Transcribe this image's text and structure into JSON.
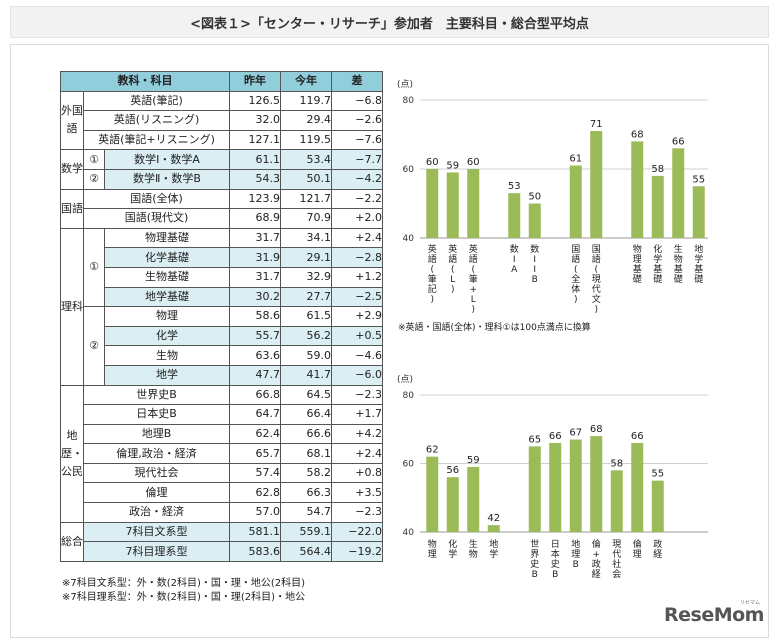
{
  "title": "<図表１>「センター・リサーチ」参加者　主要科目・総合型平均点",
  "table": {
    "headers": [
      "教科・科目",
      "昨年",
      "今年",
      "差"
    ],
    "rows": [
      {
        "group": "外国語",
        "sub": "",
        "subject": "英語(筆記)",
        "last": "126.5",
        "this": "119.7",
        "diff": "−6.8"
      },
      {
        "group": "",
        "sub": "",
        "subject": "英語(リスニング)",
        "last": "32.0",
        "this": "29.4",
        "diff": "−2.6"
      },
      {
        "group": "",
        "sub": "",
        "subject": "英語(筆記+リスニング)",
        "last": "127.1",
        "this": "119.5",
        "diff": "−7.6"
      },
      {
        "group": "数学",
        "sub": "①",
        "subject": "数学Ⅰ・数学A",
        "last": "61.1",
        "this": "53.4",
        "diff": "−7.7"
      },
      {
        "group": "",
        "sub": "②",
        "subject": "数学Ⅱ・数学B",
        "last": "54.3",
        "this": "50.1",
        "diff": "−4.2"
      },
      {
        "group": "国語",
        "sub": "",
        "subject": "国語(全体)",
        "last": "123.9",
        "this": "121.7",
        "diff": "−2.2"
      },
      {
        "group": "",
        "sub": "",
        "subject": "国語(現代文)",
        "last": "68.9",
        "this": "70.9",
        "diff": "+2.0"
      },
      {
        "group": "理科",
        "sub": "①",
        "subject": "物理基礎",
        "last": "31.7",
        "this": "34.1",
        "diff": "+2.4"
      },
      {
        "group": "",
        "sub": "",
        "subject": "化学基礎",
        "last": "31.9",
        "this": "29.1",
        "diff": "−2.8"
      },
      {
        "group": "",
        "sub": "",
        "subject": "生物基礎",
        "last": "31.7",
        "this": "32.9",
        "diff": "+1.2"
      },
      {
        "group": "",
        "sub": "",
        "subject": "地学基礎",
        "last": "30.2",
        "this": "27.7",
        "diff": "−2.5"
      },
      {
        "group": "",
        "sub": "②",
        "subject": "物理",
        "last": "58.6",
        "this": "61.5",
        "diff": "+2.9"
      },
      {
        "group": "",
        "sub": "",
        "subject": "化学",
        "last": "55.7",
        "this": "56.2",
        "diff": "+0.5"
      },
      {
        "group": "",
        "sub": "",
        "subject": "生物",
        "last": "63.6",
        "this": "59.0",
        "diff": "−4.6"
      },
      {
        "group": "",
        "sub": "",
        "subject": "地学",
        "last": "47.7",
        "this": "41.7",
        "diff": "−6.0"
      },
      {
        "group": "地歴・公民",
        "sub": "",
        "subject": "世界史B",
        "last": "66.8",
        "this": "64.5",
        "diff": "−2.3"
      },
      {
        "group": "",
        "sub": "",
        "subject": "日本史B",
        "last": "64.7",
        "this": "66.4",
        "diff": "+1.7"
      },
      {
        "group": "",
        "sub": "",
        "subject": "地理B",
        "last": "62.4",
        "this": "66.6",
        "diff": "+4.2"
      },
      {
        "group": "",
        "sub": "",
        "subject": "倫理,政治・経済",
        "last": "65.7",
        "this": "68.1",
        "diff": "+2.4"
      },
      {
        "group": "",
        "sub": "",
        "subject": "現代社会",
        "last": "57.4",
        "this": "58.2",
        "diff": "+0.8"
      },
      {
        "group": "",
        "sub": "",
        "subject": "倫理",
        "last": "62.8",
        "this": "66.3",
        "diff": "+3.5"
      },
      {
        "group": "",
        "sub": "",
        "subject": "政治・経済",
        "last": "57.0",
        "this": "54.7",
        "diff": "−2.3"
      },
      {
        "group": "総合",
        "sub": "",
        "subject": "7科目文系型",
        "last": "581.1",
        "this": "559.1",
        "diff": "−22.0"
      },
      {
        "group": "",
        "sub": "",
        "subject": "7科目理系型",
        "last": "583.6",
        "this": "564.4",
        "diff": "−19.2"
      }
    ]
  },
  "notes": [
    "※7科目文系型：外・数(2科目)・国・理・地公(2科目)",
    "※7科目理系型：外・数(2科目)・国・理(2科目)・地公"
  ],
  "chart_note": "※英語・国語(全体)・理科①は100点満点に換算",
  "logo": {
    "text": "ReseMom",
    "sub": "リセマム"
  },
  "colors": {
    "bar": "#9bbb59",
    "header": "#92cddc",
    "alt_row": "#daeef3",
    "gridline": "#d0d0d0"
  },
  "chart_data": [
    {
      "type": "bar",
      "ylabel": "(点)",
      "ylim": [
        40,
        80
      ],
      "yticks": [
        40,
        60,
        80
      ],
      "groups": [
        [
          {
            "label": "英語(筆記)",
            "value": 60
          },
          {
            "label": "英語(L)",
            "value": 59
          },
          {
            "label": "英語(筆+L)",
            "value": 60
          }
        ],
        [
          {
            "label": "数IA",
            "value": 53
          },
          {
            "label": "数IIB",
            "value": 50
          }
        ],
        [
          {
            "label": "国語(全体)",
            "value": 61
          },
          {
            "label": "国語(現代文)",
            "value": 71
          }
        ],
        [
          {
            "label": "物理基礎",
            "value": 68
          },
          {
            "label": "化学基礎",
            "value": 58
          },
          {
            "label": "生物基礎",
            "value": 66
          },
          {
            "label": "地学基礎",
            "value": 55
          }
        ]
      ]
    },
    {
      "type": "bar",
      "ylabel": "(点)",
      "ylim": [
        40,
        80
      ],
      "yticks": [
        40,
        60,
        80
      ],
      "groups": [
        [
          {
            "label": "物理",
            "value": 62
          },
          {
            "label": "化学",
            "value": 56
          },
          {
            "label": "生物",
            "value": 59
          },
          {
            "label": "地学",
            "value": 42
          }
        ],
        [
          {
            "label": "世界史B",
            "value": 65
          },
          {
            "label": "日本史B",
            "value": 66
          },
          {
            "label": "地理B",
            "value": 67
          },
          {
            "label": "倫+政経",
            "value": 68
          },
          {
            "label": "現代社会",
            "value": 58
          },
          {
            "label": "倫理",
            "value": 66
          },
          {
            "label": "政経",
            "value": 55
          }
        ]
      ]
    }
  ]
}
